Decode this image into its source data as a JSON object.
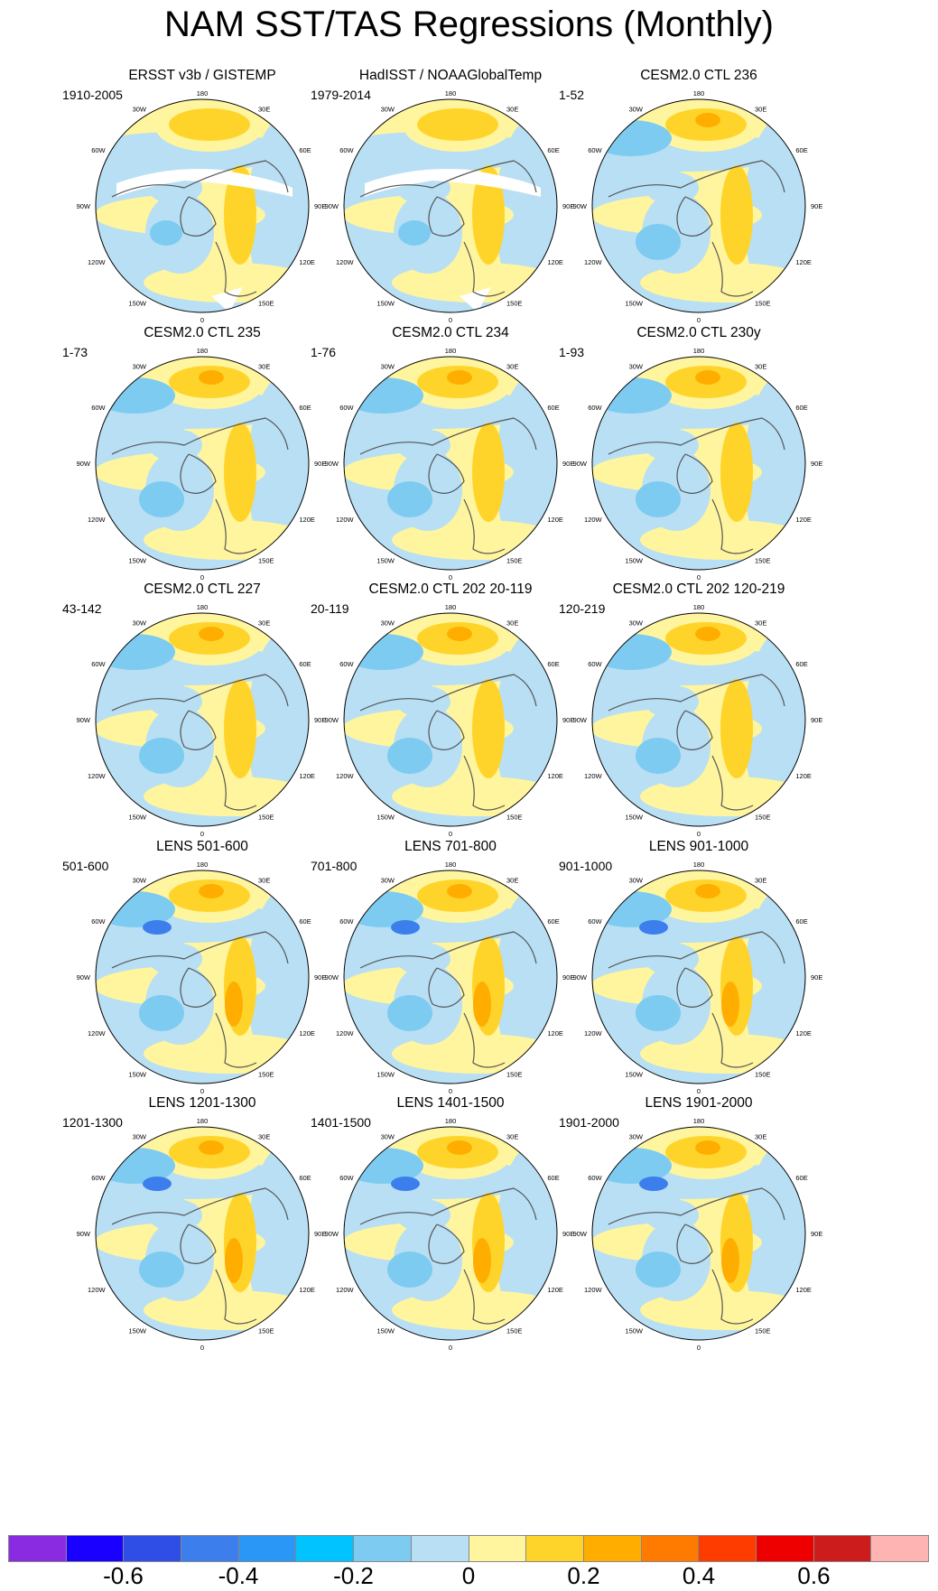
{
  "title": "NAM SST/TAS Regressions (Monthly)",
  "panels": [
    {
      "title": "ERSST v3b / GISTEMP",
      "period": "1910-2005",
      "style": "obs1"
    },
    {
      "title": "HadISST / NOAAGlobalTemp",
      "period": "1979-2014",
      "style": "obs2"
    },
    {
      "title": "CESM2.0 CTL 236",
      "period": "1-52",
      "style": "model"
    },
    {
      "title": "CESM2.0 CTL 235",
      "period": "1-73",
      "style": "model"
    },
    {
      "title": "CESM2.0 CTL 234",
      "period": "1-76",
      "style": "model"
    },
    {
      "title": "CESM2.0 CTL 230y",
      "period": "1-93",
      "style": "model"
    },
    {
      "title": "CESM2.0 CTL 227",
      "period": "43-142",
      "style": "model"
    },
    {
      "title": "CESM2.0 CTL 202 20-119",
      "period": "20-119",
      "style": "model"
    },
    {
      "title": "CESM2.0 CTL 202 120-219",
      "period": "120-219",
      "style": "model"
    },
    {
      "title": "LENS 501-600",
      "period": "501-600",
      "style": "lens"
    },
    {
      "title": "LENS 701-800",
      "period": "701-800",
      "style": "lens"
    },
    {
      "title": "LENS 901-1000",
      "period": "901-1000",
      "style": "lens"
    },
    {
      "title": "LENS 1201-1300",
      "period": "1201-1300",
      "style": "lens"
    },
    {
      "title": "LENS 1401-1500",
      "period": "1401-1500",
      "style": "lens"
    },
    {
      "title": "LENS 1901-2000",
      "period": "1901-2000",
      "style": "lens"
    }
  ],
  "map_labels": {
    "top": "180",
    "bottom": "0",
    "left": [
      "150W",
      "120W",
      "90W",
      "60W",
      "30W"
    ],
    "right": [
      "150E",
      "120E",
      "90E",
      "60E",
      "30E"
    ]
  },
  "colorbar": {
    "colors": [
      "#8a2be2",
      "#1a00ff",
      "#2f4ee6",
      "#3d7eed",
      "#2a96f5",
      "#00c3ff",
      "#7dcbf0",
      "#b8dff4",
      "#fff59e",
      "#ffd42a",
      "#ffae00",
      "#ff7b00",
      "#ff3c00",
      "#ee0000",
      "#cc1c1c",
      "#ffb4b4"
    ],
    "tick_labels": [
      "-0.6",
      "-0.4",
      "-0.2",
      "0",
      "0.2",
      "0.4",
      "0.6"
    ]
  }
}
